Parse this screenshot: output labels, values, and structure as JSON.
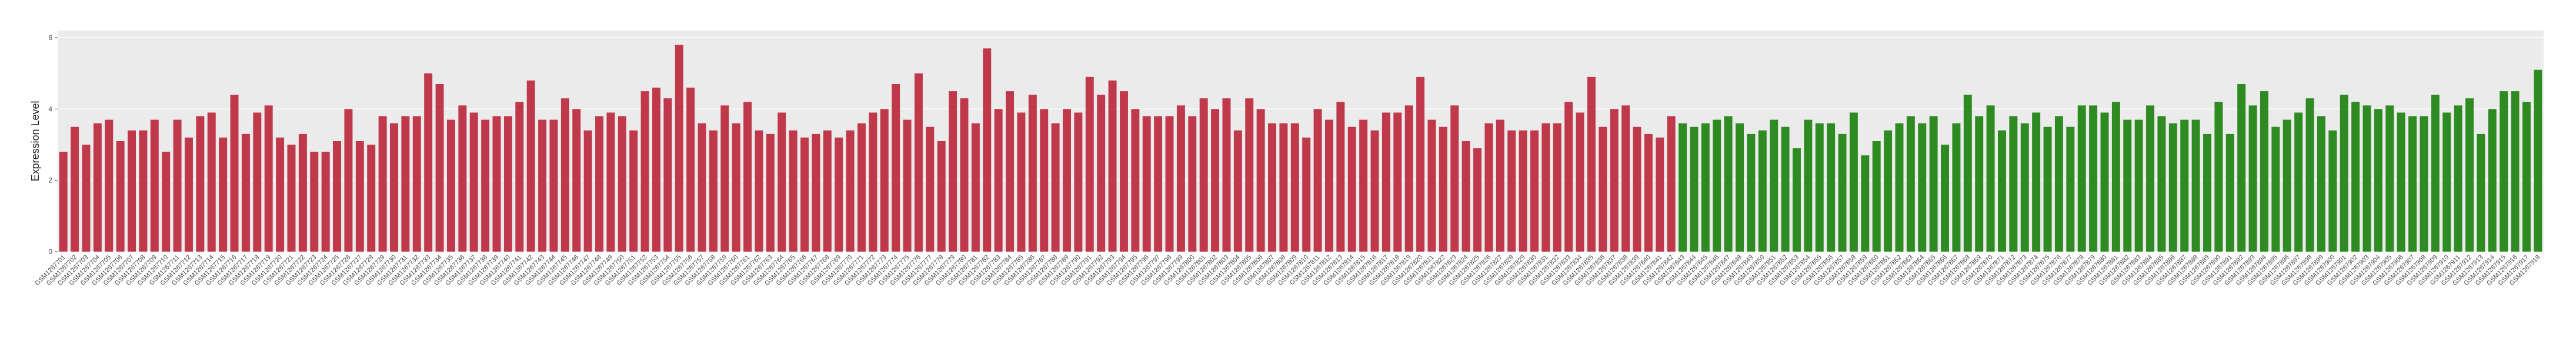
{
  "chart_data": {
    "type": "bar",
    "y_label": "Expression Level",
    "ylim": [
      0,
      6.2
    ],
    "yticks": [
      0,
      2,
      4,
      6
    ],
    "grid": true,
    "groups": [
      {
        "color": "#c0394b",
        "categories": [
          "GSM1267701",
          "GSM1267702",
          "GSM1267703",
          "GSM1267704",
          "GSM1267705",
          "GSM1267706",
          "GSM1267707",
          "GSM1267708",
          "GSM1267709",
          "GSM1267710",
          "GSM1267711",
          "GSM1267712",
          "GSM1267713",
          "GSM1267714",
          "GSM1267715",
          "GSM1267716",
          "GSM1267717",
          "GSM1267718",
          "GSM1267719",
          "GSM1267720",
          "GSM1267721",
          "GSM1267722",
          "GSM1267723",
          "GSM1267724",
          "GSM1267725",
          "GSM1267726",
          "GSM1267727",
          "GSM1267728",
          "GSM1267729",
          "GSM1267730",
          "GSM1267731",
          "GSM1267732",
          "GSM1267733",
          "GSM1267734",
          "GSM1267735",
          "GSM1267736",
          "GSM1267737",
          "GSM1267738",
          "GSM1267739",
          "GSM1267740",
          "GSM1267741",
          "GSM1267742",
          "GSM1267743",
          "GSM1267744",
          "GSM1267745",
          "GSM1267746",
          "GSM1267747",
          "GSM1267748",
          "GSM1267749",
          "GSM1267750",
          "GSM1267751",
          "GSM1267752",
          "GSM1267753",
          "GSM1267754",
          "GSM1267755",
          "GSM1267756",
          "GSM1267757",
          "GSM1267758",
          "GSM1267759",
          "GSM1267760",
          "GSM1267761",
          "GSM1267762",
          "GSM1267763",
          "GSM1267764",
          "GSM1267765",
          "GSM1267766",
          "GSM1267767",
          "GSM1267768",
          "GSM1267769",
          "GSM1267770",
          "GSM1267771",
          "GSM1267772",
          "GSM1267773",
          "GSM1267774",
          "GSM1267775",
          "GSM1267776",
          "GSM1267777",
          "GSM1267778",
          "GSM1267779",
          "GSM1267780",
          "GSM1267781",
          "GSM1267782",
          "GSM1267783",
          "GSM1267784",
          "GSM1267785",
          "GSM1267786",
          "GSM1267787",
          "GSM1267788",
          "GSM1267789",
          "GSM1267790",
          "GSM1267791",
          "GSM1267792",
          "GSM1267793",
          "GSM1267794",
          "GSM1267795",
          "GSM1267796",
          "GSM1267797",
          "GSM1267798",
          "GSM1267799",
          "GSM1267800",
          "GSM1267801",
          "GSM1267802",
          "GSM1267803",
          "GSM1267804",
          "GSM1267805",
          "GSM1267806",
          "GSM1267807",
          "GSM1267808",
          "GSM1267809",
          "GSM1267810",
          "GSM1267811",
          "GSM1267812",
          "GSM1267813",
          "GSM1267814",
          "GSM1267815",
          "GSM1267816",
          "GSM1267817",
          "GSM1267818",
          "GSM1267819",
          "GSM1267820",
          "GSM1267821",
          "GSM1267822",
          "GSM1267823",
          "GSM1267824",
          "GSM1267825",
          "GSM1267826",
          "GSM1267827",
          "GSM1267828",
          "GSM1267829",
          "GSM1267830",
          "GSM1267831",
          "GSM1267832",
          "GSM1267833",
          "GSM1267834",
          "GSM1267835",
          "GSM1267836",
          "GSM1267837",
          "GSM1267838",
          "GSM1267839",
          "GSM1267840",
          "GSM1267841",
          "GSM1267842"
        ],
        "values": [
          2.8,
          3.5,
          3.0,
          3.6,
          3.7,
          3.1,
          3.4,
          3.4,
          3.7,
          2.8,
          3.7,
          3.2,
          3.8,
          3.9,
          3.2,
          4.4,
          3.3,
          3.9,
          4.1,
          3.2,
          3.0,
          3.3,
          2.8,
          2.8,
          3.1,
          4.0,
          3.1,
          3.0,
          3.8,
          3.6,
          3.8,
          3.8,
          5.0,
          4.7,
          3.7,
          4.1,
          3.9,
          3.7,
          3.8,
          3.8,
          4.2,
          4.8,
          3.7,
          3.7,
          4.3,
          4.0,
          3.4,
          3.8,
          3.9,
          3.8,
          3.4,
          4.5,
          4.6,
          4.3,
          5.8,
          4.6,
          3.6,
          3.4,
          4.1,
          3.6,
          4.2,
          3.4,
          3.3,
          3.9,
          3.4,
          3.2,
          3.3,
          3.4,
          3.2,
          3.4,
          3.6,
          3.9,
          4.0,
          4.7,
          3.7,
          5.0,
          3.5,
          3.1,
          4.5,
          4.3,
          3.6,
          5.7,
          4.0,
          4.5,
          3.9,
          4.4,
          4.0,
          3.6,
          4.0,
          3.9,
          4.9,
          4.4,
          4.8,
          4.5,
          4.0,
          3.8,
          3.8,
          3.8,
          4.1,
          3.8,
          4.3,
          4.0,
          4.3,
          3.4,
          4.3,
          4.0,
          3.6,
          3.6,
          3.6,
          3.2,
          4.0,
          3.7,
          4.2,
          3.5,
          3.7,
          3.4,
          3.9,
          3.9,
          4.1,
          4.9,
          3.7,
          3.5,
          4.1,
          3.1,
          2.9,
          3.6,
          3.7,
          3.4,
          3.4,
          3.4,
          3.6,
          3.6,
          4.2,
          3.9,
          4.9,
          3.5,
          4.0,
          4.1,
          3.5,
          3.3,
          3.2,
          3.8
        ]
      },
      {
        "color": "#2e8b22",
        "categories": [
          "GSM1267843",
          "GSM1267844",
          "GSM1267845",
          "GSM1267846",
          "GSM1267847",
          "GSM1267848",
          "GSM1267849",
          "GSM1267850",
          "GSM1267851",
          "GSM1267852",
          "GSM1267853",
          "GSM1267854",
          "GSM1267855",
          "GSM1267856",
          "GSM1267857",
          "GSM1267858",
          "GSM1267859",
          "GSM1267860",
          "GSM1267861",
          "GSM1267862",
          "GSM1267863",
          "GSM1267864",
          "GSM1267865",
          "GSM1267866",
          "GSM1267867",
          "GSM1267868",
          "GSM1267869",
          "GSM1267870",
          "GSM1267871",
          "GSM1267872",
          "GSM1267873",
          "GSM1267874",
          "GSM1267875",
          "GSM1267876",
          "GSM1267877",
          "GSM1267878",
          "GSM1267879",
          "GSM1267880",
          "GSM1267881",
          "GSM1267882",
          "GSM1267883",
          "GSM1267884",
          "GSM1267885",
          "GSM1267886",
          "GSM1267887",
          "GSM1267888",
          "GSM1267889",
          "GSM1267890",
          "GSM1267891",
          "GSM1267892",
          "GSM1267893",
          "GSM1267894",
          "GSM1267895",
          "GSM1267896",
          "GSM1267897",
          "GSM1267898",
          "GSM1267899",
          "GSM1267900",
          "GSM1267901",
          "GSM1267902",
          "GSM1267903",
          "GSM1267904",
          "GSM1267905",
          "GSM1267906",
          "GSM1267907",
          "GSM1267908",
          "GSM1267909",
          "GSM1267910",
          "GSM1267911",
          "GSM1267912",
          "GSM1267913",
          "GSM1267914",
          "GSM1267915",
          "GSM1267916",
          "GSM1267917",
          "GSM1267918"
        ],
        "values": [
          3.6,
          3.5,
          3.6,
          3.7,
          3.8,
          3.6,
          3.3,
          3.4,
          3.7,
          3.5,
          2.9,
          3.7,
          3.6,
          3.6,
          3.3,
          3.9,
          2.7,
          3.1,
          3.4,
          3.6,
          3.8,
          3.6,
          3.8,
          3.0,
          3.6,
          4.4,
          3.8,
          4.1,
          3.4,
          3.8,
          3.6,
          3.9,
          3.5,
          3.8,
          3.5,
          4.1,
          4.1,
          3.9,
          4.2,
          3.7,
          3.7,
          4.1,
          3.8,
          3.6,
          3.7,
          3.7,
          3.3,
          4.2,
          3.3,
          4.7,
          4.1,
          4.5,
          3.5,
          3.7,
          3.9,
          4.3,
          3.8,
          3.4,
          4.4,
          4.2,
          4.1,
          4.0,
          4.1,
          3.9,
          3.8,
          3.8,
          4.4,
          3.9,
          4.1,
          4.3,
          3.3,
          4.0,
          4.5,
          4.5,
          4.2,
          5.1
        ]
      }
    ]
  }
}
